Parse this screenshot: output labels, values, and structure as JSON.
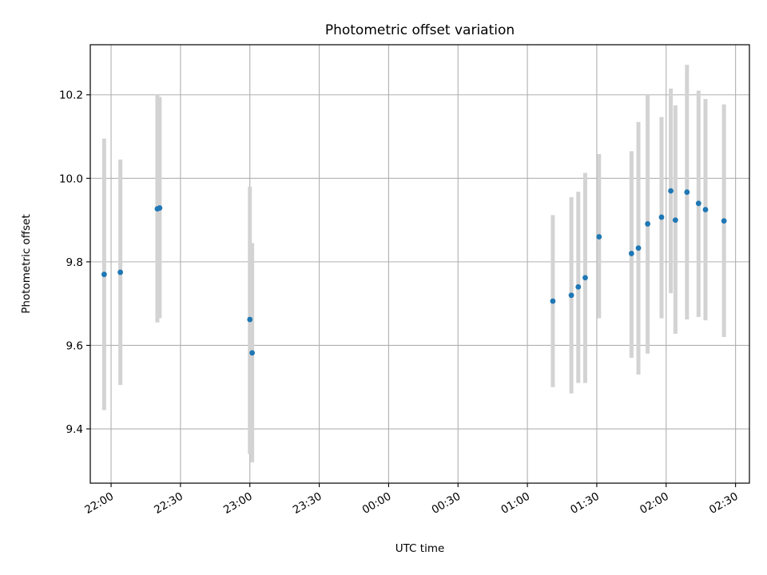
{
  "chart_data": {
    "type": "scatter",
    "title": "Photometric offset variation",
    "xlabel": "UTC time",
    "ylabel": "Photometric offset",
    "x_axis_type": "time",
    "xlim": [
      "21:51",
      "02:36"
    ],
    "ylim": [
      9.27,
      10.32
    ],
    "grid": true,
    "x_ticks": [
      "22:00",
      "22:30",
      "23:00",
      "23:30",
      "00:00",
      "00:30",
      "01:00",
      "01:30",
      "02:00",
      "02:30"
    ],
    "y_ticks": [
      9.4,
      9.6,
      9.8,
      10.0,
      10.2
    ],
    "y_tick_labels": [
      "9.4",
      "9.6",
      "9.8",
      "10.0",
      "10.2"
    ],
    "point_color": "#1f77b4",
    "errorbar_color": "#d3d3d3",
    "points": [
      {
        "time": "21:57",
        "y": 9.77,
        "ylow": 9.445,
        "yhigh": 10.095
      },
      {
        "time": "22:04",
        "y": 9.775,
        "ylow": 9.505,
        "yhigh": 10.045
      },
      {
        "time": "22:20",
        "y": 9.927,
        "ylow": 9.655,
        "yhigh": 10.2
      },
      {
        "time": "22:21",
        "y": 9.929,
        "ylow": 9.665,
        "yhigh": 10.195
      },
      {
        "time": "23:00",
        "y": 9.662,
        "ylow": 9.34,
        "yhigh": 9.98
      },
      {
        "time": "23:01",
        "y": 9.582,
        "ylow": 9.32,
        "yhigh": 9.845
      },
      {
        "time": "01:11",
        "y": 9.706,
        "ylow": 9.5,
        "yhigh": 9.912
      },
      {
        "time": "01:19",
        "y": 9.72,
        "ylow": 9.485,
        "yhigh": 9.955
      },
      {
        "time": "01:22",
        "y": 9.74,
        "ylow": 9.51,
        "yhigh": 9.968
      },
      {
        "time": "01:25",
        "y": 9.762,
        "ylow": 9.51,
        "yhigh": 10.013
      },
      {
        "time": "01:31",
        "y": 9.86,
        "ylow": 9.665,
        "yhigh": 10.058
      },
      {
        "time": "01:45",
        "y": 9.82,
        "ylow": 9.57,
        "yhigh": 10.065
      },
      {
        "time": "01:48",
        "y": 9.833,
        "ylow": 9.53,
        "yhigh": 10.135
      },
      {
        "time": "01:52",
        "y": 9.891,
        "ylow": 9.58,
        "yhigh": 10.2
      },
      {
        "time": "01:58",
        "y": 9.907,
        "ylow": 9.665,
        "yhigh": 10.147
      },
      {
        "time": "02:02",
        "y": 9.97,
        "ylow": 9.725,
        "yhigh": 10.215
      },
      {
        "time": "02:04",
        "y": 9.9,
        "ylow": 9.628,
        "yhigh": 10.175
      },
      {
        "time": "02:09",
        "y": 9.967,
        "ylow": 9.662,
        "yhigh": 10.272
      },
      {
        "time": "02:14",
        "y": 9.94,
        "ylow": 9.668,
        "yhigh": 10.21
      },
      {
        "time": "02:17",
        "y": 9.925,
        "ylow": 9.66,
        "yhigh": 10.19
      },
      {
        "time": "02:25",
        "y": 9.898,
        "ylow": 9.62,
        "yhigh": 10.177
      }
    ]
  }
}
